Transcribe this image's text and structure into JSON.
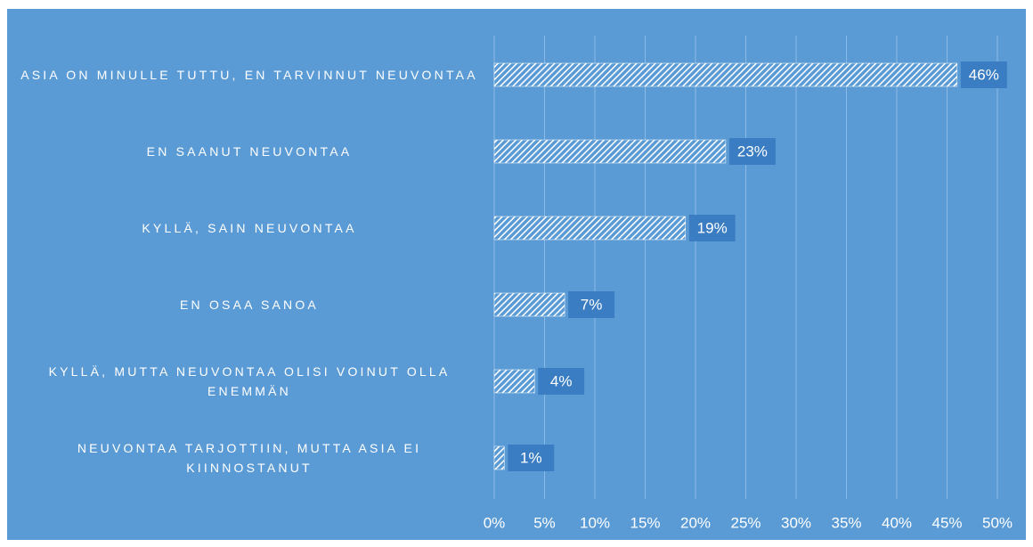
{
  "chart_data": {
    "type": "bar",
    "orientation": "horizontal",
    "categories": [
      "ASIA ON MINULLE TUTTU, EN TARVINNUT NEUVONTAA",
      "EN SAANUT NEUVONTAA",
      "KYLLÄ, SAIN NEUVONTAA",
      "EN OSAA SANOA",
      "KYLLÄ, MUTTA NEUVONTAA OLISI VOINUT OLLA ENEMMÄN",
      "NEUVONTAA TARJOTTIIN, MUTTA ASIA EI KIINNOSTANUT"
    ],
    "values": [
      46,
      23,
      19,
      7,
      4,
      1
    ],
    "value_labels": [
      "46%",
      "23%",
      "19%",
      "7%",
      "4%",
      "1%"
    ],
    "color": "#ffffff",
    "xlim": [
      0,
      50
    ],
    "xticks": [
      {
        "value": 0,
        "label": "0%"
      },
      {
        "value": 5,
        "label": "5%"
      },
      {
        "value": 10,
        "label": "10%"
      },
      {
        "value": 15,
        "label": "15%"
      },
      {
        "value": 20,
        "label": "20%"
      },
      {
        "value": 25,
        "label": "25%"
      },
      {
        "value": 30,
        "label": "30%"
      },
      {
        "value": 35,
        "label": "35%"
      },
      {
        "value": 40,
        "label": "40%"
      },
      {
        "value": 45,
        "label": "45%"
      },
      {
        "value": 50,
        "label": "50%"
      }
    ],
    "grid": true
  }
}
